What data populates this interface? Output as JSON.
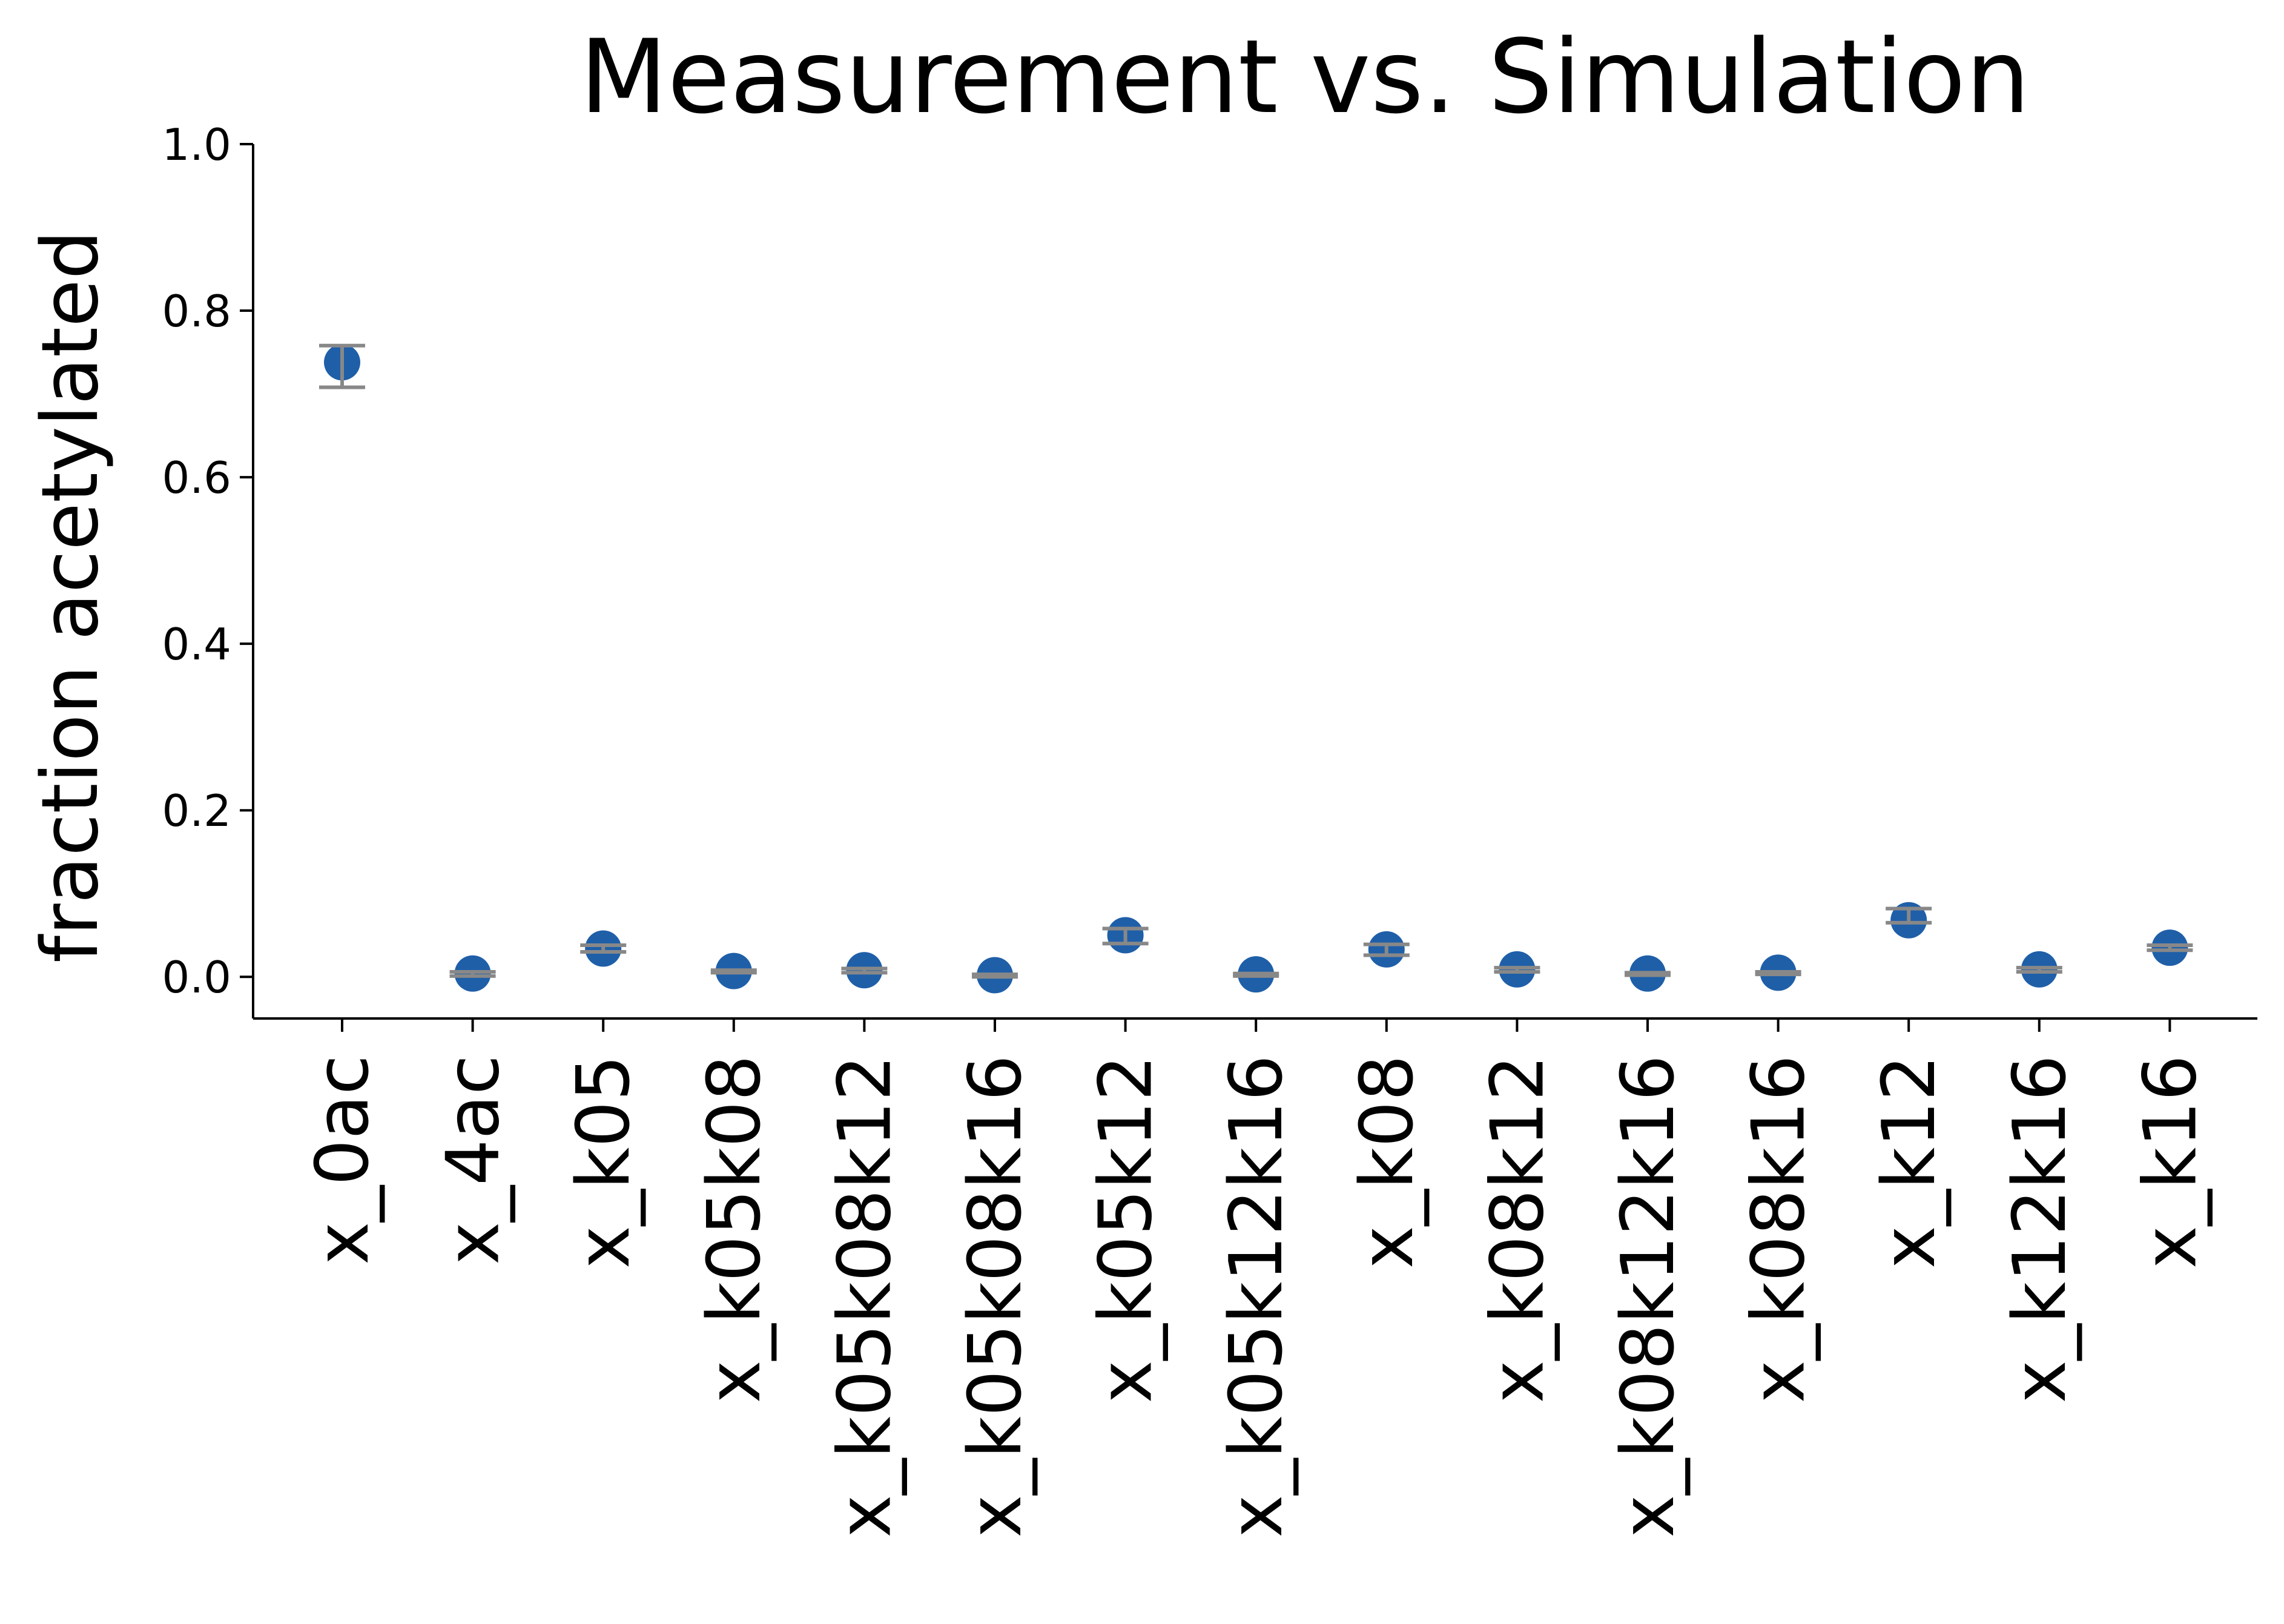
{
  "chart_data": {
    "type": "scatter",
    "title": "Measurement vs. Simulation",
    "xlabel": "",
    "ylabel": "fraction acetylated",
    "ylim": [
      -0.05,
      1.0
    ],
    "yticks": [
      "0.0",
      "0.2",
      "0.4",
      "0.6",
      "0.8",
      "1.0"
    ],
    "grid": false,
    "categories": [
      "x_0ac",
      "x_4ac",
      "x_k05",
      "x_k05k08",
      "x_k05k08k12",
      "x_k05k08k16",
      "x_k05k12",
      "x_k05k12k16",
      "x_k08",
      "x_k08k12",
      "x_k08k12k16",
      "x_k08k16",
      "x_k12",
      "x_k12k16",
      "x_k16"
    ],
    "series": [
      {
        "values": [
          0.738,
          0.004,
          0.034,
          0.007,
          0.008,
          0.002,
          0.05,
          0.003,
          0.033,
          0.009,
          0.004,
          0.005,
          0.068,
          0.009,
          0.035
        ],
        "err_low": [
          0.708,
          0.001,
          0.03,
          0.005,
          0.005,
          0.0,
          0.04,
          0.001,
          0.026,
          0.006,
          0.002,
          0.003,
          0.065,
          0.006,
          0.032
        ],
        "err_high": [
          0.758,
          0.006,
          0.038,
          0.008,
          0.01,
          0.003,
          0.058,
          0.004,
          0.039,
          0.011,
          0.005,
          0.006,
          0.082,
          0.011,
          0.038
        ],
        "color": "#1f5fa8",
        "error_color": "#888888"
      }
    ]
  }
}
